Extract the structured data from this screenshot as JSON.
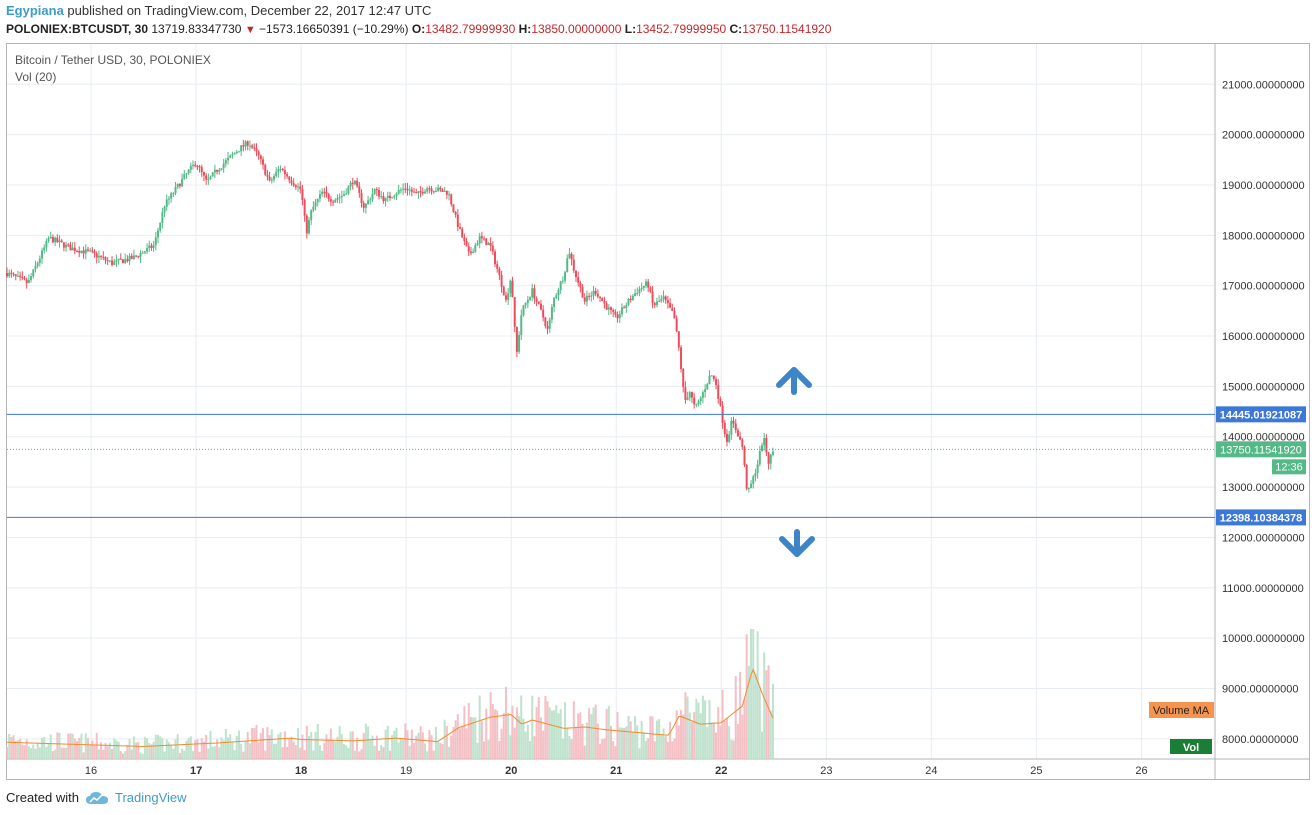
{
  "header": {
    "author": "Egypiana",
    "published_text": "published on TradingView.com, December 22, 2017 12:47 UTC"
  },
  "ohlc_bar": {
    "symbol": "POLONIEX:BTCUSDT, 30",
    "last": "13719.83347730",
    "change": "−1573.16650391 (−10.29%)",
    "o_label": "O:",
    "o": "13482.79999930",
    "h_label": "H:",
    "h": "13850.00000000",
    "l_label": "L:",
    "l": "13452.79999950",
    "c_label": "C:",
    "c": "13750.11541920"
  },
  "legend": {
    "title": "Bitcoin / Tether USD, 30, POLONIEX",
    "volume": "Vol (20)"
  },
  "footer": {
    "created_with": "Created with",
    "brand": "TradingView"
  },
  "colors": {
    "up": "#53b987",
    "down": "#eb4d5c",
    "grid": "#e8edf1",
    "level_line": "#3c78d8",
    "arrow": "#3d85c6",
    "price_badge": "#53b987",
    "volume_ma": "#f08a2c"
  },
  "chart_data": {
    "type": "candlestick",
    "symbol": "Bitcoin / Tether USD",
    "interval": "30",
    "exchange": "POLONIEX",
    "y_ticks": [
      "21000.00000000",
      "20000.00000000",
      "19000.00000000",
      "18000.00000000",
      "17000.00000000",
      "16000.00000000",
      "15000.00000000",
      "14000.00000000",
      "13000.00000000",
      "12000.00000000",
      "11000.00000000",
      "10000.00000000",
      "9000.00000000",
      "8000.00000000"
    ],
    "ylim": [
      7600,
      21800
    ],
    "x_tick_labels": [
      "16",
      "17",
      "18",
      "19",
      "20",
      "21",
      "22",
      "23",
      "24",
      "25",
      "26"
    ],
    "bold_x_ticks": [
      "17",
      "18",
      "20",
      "21",
      "22"
    ],
    "xlim_days": [
      15.2,
      26.7
    ],
    "levels": [
      {
        "label": "14445.01921087",
        "value": 14445.01921087
      },
      {
        "label": "12398.10384378",
        "value": 12398.10384378
      }
    ],
    "last_price": {
      "label": "13750.11541920",
      "value": 13750.1154192,
      "countdown": "12:36"
    },
    "volume_ma_label": "Volume MA",
    "volume_badge_label": "Vol",
    "close_path": [
      [
        15.2,
        17250
      ],
      [
        15.4,
        17050
      ],
      [
        15.6,
        17950
      ],
      [
        15.8,
        17750
      ],
      [
        16.0,
        17650
      ],
      [
        16.2,
        17450
      ],
      [
        16.4,
        17550
      ],
      [
        16.6,
        17800
      ],
      [
        16.7,
        18600
      ],
      [
        16.8,
        18900
      ],
      [
        16.9,
        19200
      ],
      [
        17.0,
        19450
      ],
      [
        17.1,
        19050
      ],
      [
        17.2,
        19300
      ],
      [
        17.3,
        19500
      ],
      [
        17.4,
        19700
      ],
      [
        17.5,
        19850
      ],
      [
        17.6,
        19550
      ],
      [
        17.7,
        19050
      ],
      [
        17.8,
        19350
      ],
      [
        17.9,
        19100
      ],
      [
        18.0,
        18900
      ],
      [
        18.05,
        18050
      ],
      [
        18.1,
        18500
      ],
      [
        18.2,
        18850
      ],
      [
        18.3,
        18700
      ],
      [
        18.4,
        18800
      ],
      [
        18.5,
        19100
      ],
      [
        18.6,
        18550
      ],
      [
        18.7,
        18900
      ],
      [
        18.8,
        18700
      ],
      [
        18.9,
        18850
      ],
      [
        19.0,
        18950
      ],
      [
        19.1,
        18800
      ],
      [
        19.2,
        18950
      ],
      [
        19.4,
        18850
      ],
      [
        19.5,
        18150
      ],
      [
        19.6,
        17600
      ],
      [
        19.7,
        17950
      ],
      [
        19.8,
        17800
      ],
      [
        19.9,
        17100
      ],
      [
        19.95,
        16700
      ],
      [
        20.0,
        17200
      ],
      [
        20.05,
        15600
      ],
      [
        20.1,
        16500
      ],
      [
        20.2,
        16900
      ],
      [
        20.3,
        16400
      ],
      [
        20.35,
        16100
      ],
      [
        20.4,
        16700
      ],
      [
        20.5,
        17200
      ],
      [
        20.55,
        17700
      ],
      [
        20.6,
        17300
      ],
      [
        20.7,
        16700
      ],
      [
        20.8,
        16900
      ],
      [
        20.9,
        16600
      ],
      [
        21.0,
        16350
      ],
      [
        21.1,
        16650
      ],
      [
        21.2,
        16900
      ],
      [
        21.3,
        17050
      ],
      [
        21.35,
        16600
      ],
      [
        21.45,
        16750
      ],
      [
        21.55,
        16400
      ],
      [
        21.6,
        15700
      ],
      [
        21.65,
        14700
      ],
      [
        21.7,
        14900
      ],
      [
        21.75,
        14550
      ],
      [
        21.8,
        14750
      ],
      [
        21.9,
        15250
      ],
      [
        21.95,
        15050
      ],
      [
        22.05,
        13900
      ],
      [
        22.1,
        14300
      ],
      [
        22.15,
        14100
      ],
      [
        22.2,
        13800
      ],
      [
        22.25,
        12850
      ],
      [
        22.3,
        13150
      ],
      [
        22.35,
        13500
      ],
      [
        22.4,
        14000
      ],
      [
        22.45,
        13500
      ],
      [
        22.5,
        13750
      ]
    ],
    "volume_path": [
      [
        15.2,
        240
      ],
      [
        16.5,
        180
      ],
      [
        17.2,
        230
      ],
      [
        17.9,
        300
      ],
      [
        18.0,
        280
      ],
      [
        18.5,
        260
      ],
      [
        18.9,
        300
      ],
      [
        19.3,
        250
      ],
      [
        19.5,
        450
      ],
      [
        19.8,
        600
      ],
      [
        20.0,
        640
      ],
      [
        20.1,
        500
      ],
      [
        20.2,
        560
      ],
      [
        20.3,
        520
      ],
      [
        20.5,
        440
      ],
      [
        20.7,
        460
      ],
      [
        20.9,
        420
      ],
      [
        21.2,
        380
      ],
      [
        21.5,
        340
      ],
      [
        21.6,
        620
      ],
      [
        21.8,
        500
      ],
      [
        22.0,
        520
      ],
      [
        22.2,
        760
      ],
      [
        22.3,
        1300
      ],
      [
        22.4,
        900
      ],
      [
        22.5,
        560
      ]
    ]
  }
}
